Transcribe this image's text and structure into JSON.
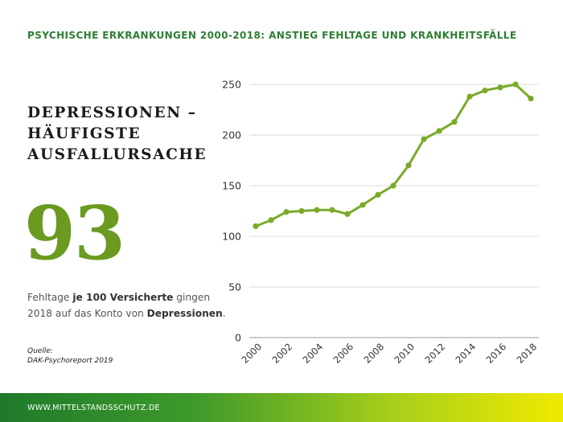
{
  "header": {
    "title": "PSYCHISCHE ERKRANKUNGEN 2000-2018: ANSTIEG FEHLTAGE UND KRANKHEITSFÄLLE"
  },
  "headline": {
    "line1": "DEPRESSIONEN –",
    "line2": "HÄUFIGSTE",
    "line3": "AUSFALLURSACHE"
  },
  "stat": {
    "value": "93"
  },
  "description": {
    "part1": "Fehltage ",
    "bold1": "je 100 Versicherte",
    "part2": " gingen 2018 auf das Konto von ",
    "bold2": "Depressionen",
    "part3": "."
  },
  "source": {
    "label": "Quelle:",
    "text": "DAK-Psychoreport 2019"
  },
  "footer": {
    "url": "WWW.MITTELSTANDSSCHUTZ.DE"
  },
  "colors": {
    "line": "#7aaa2a",
    "accent": "#6a9a1f",
    "title": "#2e7d32"
  },
  "chart_data": {
    "type": "line",
    "x": [
      2000,
      2001,
      2002,
      2003,
      2004,
      2005,
      2006,
      2007,
      2008,
      2009,
      2010,
      2011,
      2012,
      2013,
      2014,
      2015,
      2016,
      2017,
      2018
    ],
    "values": [
      110,
      116,
      124,
      125,
      126,
      126,
      122,
      131,
      141,
      150,
      170,
      196,
      204,
      213,
      238,
      244,
      247,
      250,
      236
    ],
    "ylim": [
      0,
      250
    ],
    "yticks": [
      "0",
      "50",
      "100",
      "150",
      "200",
      "250"
    ],
    "xticks": [
      "2000",
      "2002",
      "2004",
      "2006",
      "2008",
      "2010",
      "2012",
      "2014",
      "2016",
      "2018"
    ],
    "grid": true
  }
}
